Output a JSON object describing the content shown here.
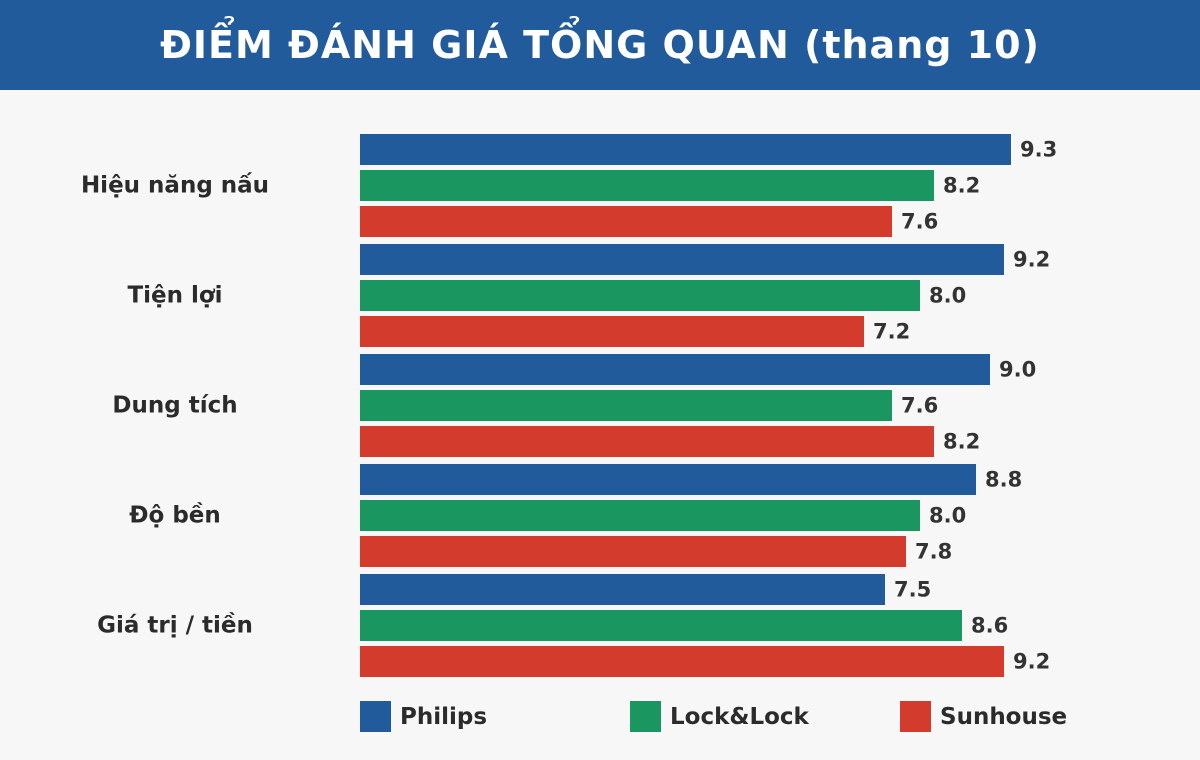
{
  "chart_data": {
    "type": "bar",
    "orientation": "horizontal",
    "title": "ĐIỂM ĐÁNH GIÁ TỔNG QUAN (thang 10)",
    "categories": [
      "Hiệu năng nấu",
      "Tiện lợi",
      "Dung tích",
      "Độ bền",
      "Giá trị / tiền"
    ],
    "series": [
      {
        "name": "Philips",
        "color": "#215b9c",
        "values": [
          9.3,
          9.2,
          9.0,
          8.8,
          7.5
        ]
      },
      {
        "name": "Lock&Lock",
        "color": "#1a9660",
        "values": [
          8.2,
          8.0,
          7.6,
          8.0,
          8.6
        ]
      },
      {
        "name": "Sunhouse",
        "color": "#d33b2d",
        "values": [
          7.6,
          7.2,
          8.2,
          7.8,
          9.2
        ]
      }
    ],
    "xlim": [
      0,
      10
    ],
    "grid": false,
    "legend_position": "bottom"
  }
}
